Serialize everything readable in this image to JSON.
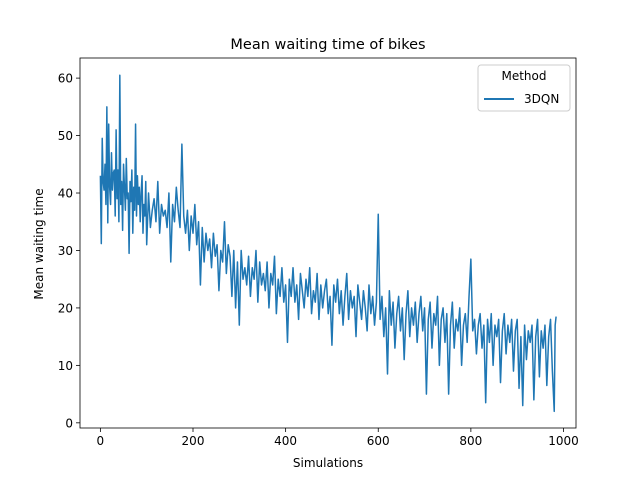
{
  "chart_data": {
    "type": "line",
    "title": "Mean waiting time of bikes",
    "xlabel": "Simulations",
    "ylabel": "Mean waiting time",
    "xlim": [
      -44,
      1027
    ],
    "ylim": [
      -0.9,
      63.5
    ],
    "xticks": [
      0,
      200,
      400,
      600,
      800,
      1000
    ],
    "xtick_labels": [
      "0",
      "200",
      "400",
      "600",
      "800",
      "1000"
    ],
    "yticks": [
      0,
      10,
      20,
      30,
      40,
      50,
      60
    ],
    "ytick_labels": [
      "0",
      "10",
      "20",
      "30",
      "40",
      "50",
      "60"
    ],
    "grid": false,
    "legend": {
      "title": "Method",
      "placement": "top-right"
    },
    "series": [
      {
        "name": "3DQN",
        "color": "#1f77b4",
        "points": [
          [
            0,
            43
          ],
          [
            2,
            31.2
          ],
          [
            4,
            49.5
          ],
          [
            6,
            42
          ],
          [
            8,
            40.5
          ],
          [
            10,
            45
          ],
          [
            12,
            38
          ],
          [
            14,
            55
          ],
          [
            16,
            34.8
          ],
          [
            18,
            52
          ],
          [
            20,
            41
          ],
          [
            22,
            38
          ],
          [
            24,
            47
          ],
          [
            26,
            40.5
          ],
          [
            28,
            43.5
          ],
          [
            30,
            44
          ],
          [
            32,
            36
          ],
          [
            34,
            51
          ],
          [
            36,
            39
          ],
          [
            38,
            44
          ],
          [
            40,
            35
          ],
          [
            42,
            60.5
          ],
          [
            44,
            38
          ],
          [
            46,
            42
          ],
          [
            48,
            33.5
          ],
          [
            50,
            45
          ],
          [
            52,
            41
          ],
          [
            54,
            37
          ],
          [
            56,
            46
          ],
          [
            58,
            39
          ],
          [
            60,
            40
          ],
          [
            62,
            29.5
          ],
          [
            64,
            42
          ],
          [
            66,
            38.5
          ],
          [
            68,
            44
          ],
          [
            70,
            33
          ],
          [
            72,
            41
          ],
          [
            74,
            37
          ],
          [
            76,
            52
          ],
          [
            78,
            36
          ],
          [
            80,
            43
          ],
          [
            82,
            38
          ],
          [
            84,
            41
          ],
          [
            86,
            35
          ],
          [
            88,
            40
          ],
          [
            90,
            43
          ],
          [
            92,
            33
          ],
          [
            94,
            38
          ],
          [
            96,
            36
          ],
          [
            98,
            42
          ],
          [
            100,
            31
          ],
          [
            104,
            40
          ],
          [
            108,
            34
          ],
          [
            112,
            37
          ],
          [
            116,
            39
          ],
          [
            120,
            35
          ],
          [
            124,
            42
          ],
          [
            128,
            33
          ],
          [
            132,
            38
          ],
          [
            136,
            36
          ],
          [
            140,
            37
          ],
          [
            144,
            34
          ],
          [
            148,
            40
          ],
          [
            152,
            28
          ],
          [
            156,
            38
          ],
          [
            160,
            35
          ],
          [
            164,
            41
          ],
          [
            168,
            37
          ],
          [
            172,
            34
          ],
          [
            176,
            48.5
          ],
          [
            180,
            36
          ],
          [
            184,
            33
          ],
          [
            188,
            37
          ],
          [
            192,
            30
          ],
          [
            196,
            36
          ],
          [
            200,
            33
          ],
          [
            204,
            38
          ],
          [
            208,
            31
          ],
          [
            212,
            35
          ],
          [
            216,
            24
          ],
          [
            220,
            34
          ],
          [
            224,
            28
          ],
          [
            228,
            33
          ],
          [
            232,
            30
          ],
          [
            236,
            32
          ],
          [
            240,
            27
          ],
          [
            244,
            33
          ],
          [
            248,
            29
          ],
          [
            252,
            31
          ],
          [
            256,
            23
          ],
          [
            260,
            30
          ],
          [
            264,
            28
          ],
          [
            268,
            35
          ],
          [
            272,
            26
          ],
          [
            276,
            31
          ],
          [
            280,
            29
          ],
          [
            284,
            22
          ],
          [
            288,
            30
          ],
          [
            292,
            20
          ],
          [
            296,
            28
          ],
          [
            300,
            17
          ],
          [
            304,
            30
          ],
          [
            308,
            25
          ],
          [
            312,
            27
          ],
          [
            316,
            24
          ],
          [
            320,
            29
          ],
          [
            324,
            22
          ],
          [
            328,
            27
          ],
          [
            332,
            25
          ],
          [
            336,
            30
          ],
          [
            340,
            21
          ],
          [
            344,
            28
          ],
          [
            348,
            24
          ],
          [
            352,
            26
          ],
          [
            356,
            23
          ],
          [
            360,
            28
          ],
          [
            364,
            20
          ],
          [
            368,
            26
          ],
          [
            372,
            24
          ],
          [
            376,
            29
          ],
          [
            380,
            19
          ],
          [
            384,
            25
          ],
          [
            388,
            22
          ],
          [
            392,
            27
          ],
          [
            396,
            21
          ],
          [
            400,
            24
          ],
          [
            404,
            14
          ],
          [
            408,
            25
          ],
          [
            412,
            22
          ],
          [
            416,
            27
          ],
          [
            420,
            21
          ],
          [
            424,
            24
          ],
          [
            428,
            18
          ],
          [
            432,
            26
          ],
          [
            436,
            23
          ],
          [
            440,
            20
          ],
          [
            444,
            25
          ],
          [
            448,
            22
          ],
          [
            452,
            27
          ],
          [
            456,
            19
          ],
          [
            460,
            23
          ],
          [
            464,
            21
          ],
          [
            468,
            26
          ],
          [
            472,
            18
          ],
          [
            476,
            24
          ],
          [
            480,
            20
          ],
          [
            484,
            23
          ],
          [
            488,
            25
          ],
          [
            492,
            19
          ],
          [
            496,
            22
          ],
          [
            500,
            13.5
          ],
          [
            504,
            24
          ],
          [
            508,
            21
          ],
          [
            512,
            25
          ],
          [
            516,
            19
          ],
          [
            520,
            23
          ],
          [
            524,
            17
          ],
          [
            528,
            22
          ],
          [
            532,
            26
          ],
          [
            536,
            18
          ],
          [
            540,
            23
          ],
          [
            544,
            20
          ],
          [
            548,
            22
          ],
          [
            552,
            15
          ],
          [
            556,
            24
          ],
          [
            560,
            21
          ],
          [
            564,
            18
          ],
          [
            568,
            23
          ],
          [
            572,
            20
          ],
          [
            576,
            16
          ],
          [
            580,
            24
          ],
          [
            584,
            19
          ],
          [
            588,
            22
          ],
          [
            592,
            17
          ],
          [
            596,
            21
          ],
          [
            600,
            36.3
          ],
          [
            604,
            18
          ],
          [
            608,
            22
          ],
          [
            612,
            15
          ],
          [
            616,
            20
          ],
          [
            620,
            8.5
          ],
          [
            624,
            23
          ],
          [
            628,
            17
          ],
          [
            632,
            21
          ],
          [
            636,
            13
          ],
          [
            640,
            19
          ],
          [
            644,
            22
          ],
          [
            648,
            16
          ],
          [
            652,
            20
          ],
          [
            656,
            11
          ],
          [
            660,
            19
          ],
          [
            664,
            23
          ],
          [
            668,
            15
          ],
          [
            672,
            20
          ],
          [
            676,
            17
          ],
          [
            680,
            21
          ],
          [
            684,
            14
          ],
          [
            688,
            19
          ],
          [
            692,
            22
          ],
          [
            696,
            16
          ],
          [
            700,
            20
          ],
          [
            704,
            5
          ],
          [
            708,
            18
          ],
          [
            712,
            21
          ],
          [
            716,
            13
          ],
          [
            720,
            19
          ],
          [
            724,
            17
          ],
          [
            728,
            22
          ],
          [
            732,
            10
          ],
          [
            736,
            18
          ],
          [
            740,
            20
          ],
          [
            744,
            14
          ],
          [
            748,
            19
          ],
          [
            752,
            5
          ],
          [
            756,
            17
          ],
          [
            760,
            21
          ],
          [
            764,
            13
          ],
          [
            768,
            18
          ],
          [
            772,
            16
          ],
          [
            776,
            20
          ],
          [
            780,
            10
          ],
          [
            784,
            17
          ],
          [
            788,
            19
          ],
          [
            792,
            14
          ],
          [
            796,
            22
          ],
          [
            800,
            28.5
          ],
          [
            804,
            16
          ],
          [
            808,
            18
          ],
          [
            812,
            12
          ],
          [
            816,
            17
          ],
          [
            820,
            19
          ],
          [
            824,
            13
          ],
          [
            828,
            17
          ],
          [
            832,
            3.5
          ],
          [
            836,
            18
          ],
          [
            840,
            14
          ],
          [
            844,
            19
          ],
          [
            848,
            10
          ],
          [
            852,
            17
          ],
          [
            856,
            15
          ],
          [
            860,
            18
          ],
          [
            864,
            7
          ],
          [
            868,
            16
          ],
          [
            872,
            19
          ],
          [
            876,
            12
          ],
          [
            880,
            17
          ],
          [
            884,
            14
          ],
          [
            888,
            18
          ],
          [
            892,
            9
          ],
          [
            896,
            16
          ],
          [
            900,
            18
          ],
          [
            904,
            6
          ],
          [
            908,
            15
          ],
          [
            912,
            3
          ],
          [
            916,
            17
          ],
          [
            920,
            11
          ],
          [
            924,
            16
          ],
          [
            928,
            14
          ],
          [
            932,
            17
          ],
          [
            936,
            4
          ],
          [
            940,
            15
          ],
          [
            944,
            18
          ],
          [
            948,
            8
          ],
          [
            952,
            16
          ],
          [
            956,
            13
          ],
          [
            960,
            17
          ],
          [
            964,
            6.5
          ],
          [
            968,
            15
          ],
          [
            972,
            18
          ],
          [
            976,
            9
          ],
          [
            980,
            2
          ],
          [
            982,
            17
          ],
          [
            984,
            18.5
          ]
        ]
      }
    ]
  }
}
